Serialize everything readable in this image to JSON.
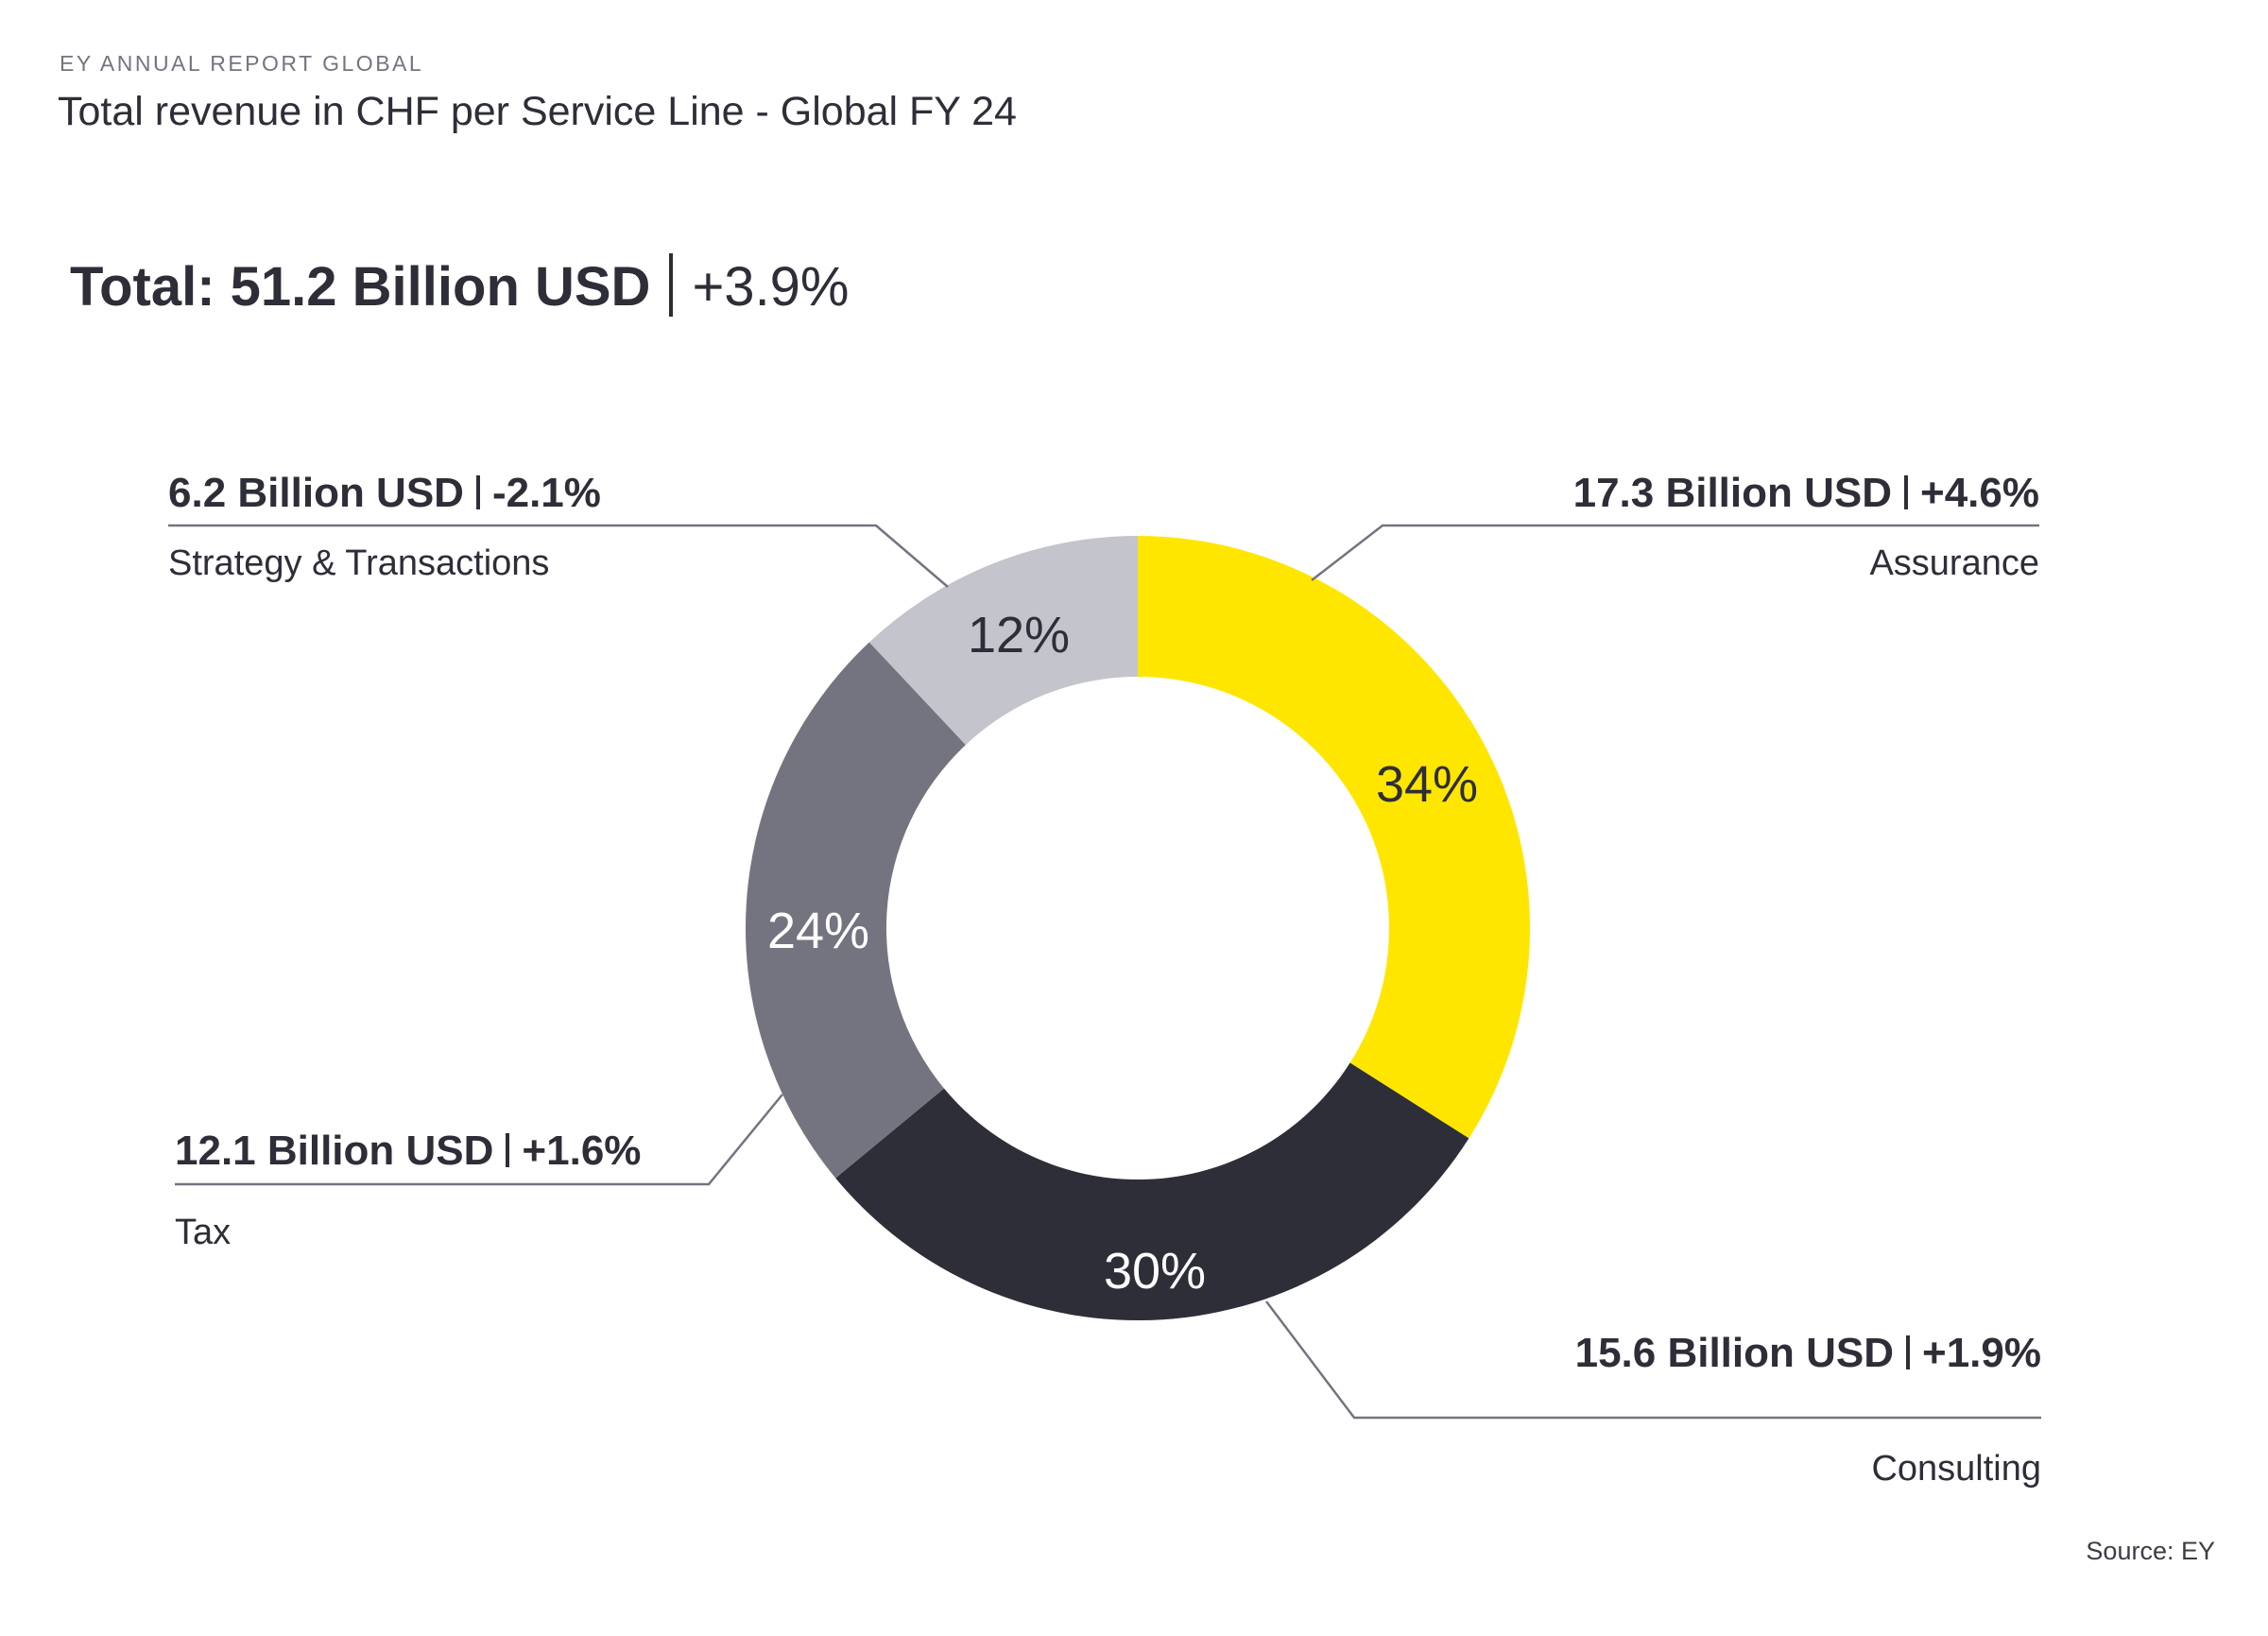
{
  "page": {
    "eyebrow": "EY ANNUAL REPORT GLOBAL",
    "title": "Total revenue in CHF per Service Line - Global FY 24",
    "total": {
      "label": "Total: 51.2 Billion USD",
      "delta": "+3.9%"
    },
    "source": "Source: EY"
  },
  "colors": {
    "accent_yellow": "#FFE600",
    "dark": "#2E2E38",
    "mid_gray": "#747480",
    "light_gray": "#C4C4CD",
    "leader_line": "#747480",
    "background": "#FFFFFF"
  },
  "chart_data": {
    "type": "pie",
    "subtype": "donut",
    "title": "Total revenue in CHF per Service Line - Global FY 24",
    "total_label": "Total: 51.2 Billion USD",
    "total_delta": "+3.9%",
    "start_angle_deg": 0,
    "direction": "clockwise",
    "legend_position": "callouts",
    "segments": [
      {
        "id": "assurance",
        "label": "Assurance",
        "value": "17.3 Billion USD",
        "delta": "+4.6%",
        "pct": 34,
        "pct_label": "34%",
        "color": "#FFE600",
        "pct_label_color": "#2E2E38"
      },
      {
        "id": "consulting",
        "label": "Consulting",
        "value": "15.6 Billion USD",
        "delta": "+1.9%",
        "pct": 30,
        "pct_label": "30%",
        "color": "#2E2E38",
        "pct_label_color": "#FFFFFF"
      },
      {
        "id": "tax",
        "label": "Tax",
        "value": "12.1 Billion USD",
        "delta": "+1.6%",
        "pct": 24,
        "pct_label": "24%",
        "color": "#747480",
        "pct_label_color": "#FFFFFF"
      },
      {
        "id": "strategy-transactions",
        "label": "Strategy & Transactions",
        "value": "6.2 Billion USD",
        "delta": "-2.1%",
        "pct": 12,
        "pct_label": "12%",
        "color": "#C4C4CD",
        "pct_label_color": "#2E2E38"
      }
    ]
  }
}
